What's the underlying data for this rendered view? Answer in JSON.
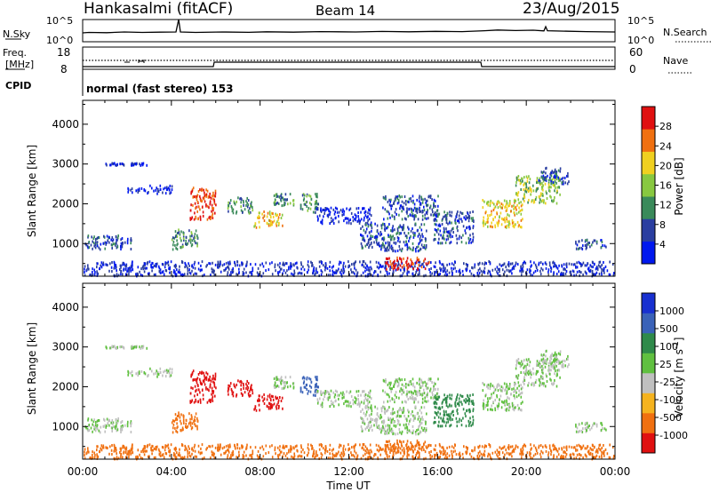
{
  "chart_data": {
    "type": "heatmap",
    "header": {
      "station": "Hankasalmi (fitACF)",
      "beam": "Beam 14",
      "date": "23/Aug/2015"
    },
    "noise_panel": {
      "left_label": "N.Sky",
      "left_ticks": [
        "10^5",
        "10^0"
      ],
      "right_label": "N.Search",
      "right_ticks": [
        "10^5",
        "10^0"
      ]
    },
    "freq_panel": {
      "left_label_1": "Freq.",
      "left_label_2": "[MHz]",
      "left_ticks": [
        "18",
        "8"
      ],
      "right_label": "Nave",
      "right_ticks": [
        "60",
        "0"
      ],
      "cpid_label": "CPID",
      "cpid_value": "normal (fast stereo) 153"
    },
    "x_axis": {
      "label": "Time UT",
      "ticks": [
        "00:00",
        "04:00",
        "08:00",
        "12:00",
        "16:00",
        "20:00",
        "00:00"
      ],
      "range_hours": [
        0,
        24
      ]
    },
    "power_panel": {
      "ylabel": "Slant Range [km]",
      "yticks": [
        1000,
        2000,
        3000,
        4000
      ],
      "yrange_km": [
        180,
        4600
      ],
      "colorbar_label": "Power [dB]",
      "colorbar_ticks": [
        "4",
        "8",
        "12",
        "16",
        "20",
        "24",
        "28"
      ],
      "colors": [
        "#0018ee",
        "#2a3ea0",
        "#3a8a5a",
        "#88c840",
        "#f0d020",
        "#f07010",
        "#e01010"
      ]
    },
    "velocity_panel": {
      "ylabel": "Slant Range [km]",
      "yticks": [
        1000,
        2000,
        3000,
        4000
      ],
      "yrange_km": [
        180,
        4600
      ],
      "colorbar_label": "Velocity [m s",
      "colorbar_label_sup": "-1",
      "colorbar_label_end": "]",
      "colorbar_ticks": [
        "1000",
        "500",
        "100",
        "25",
        "-25",
        "-100",
        "-500",
        "-1000"
      ],
      "colors": [
        "#1830d0",
        "#3a62b8",
        "#2f8a4a",
        "#60c040",
        "#c0c0c0",
        "#f5b31f",
        "#f07010",
        "#e01010"
      ]
    },
    "echo_regions": [
      {
        "t": [
          0.0,
          2.2
        ],
        "r": [
          850,
          1200
        ],
        "power": 8,
        "velocity": 25
      },
      {
        "t": [
          0.0,
          24.0
        ],
        "r": [
          180,
          550
        ],
        "power": 6,
        "velocity": -100
      },
      {
        "t": [
          1.0,
          3.0
        ],
        "r": [
          2960,
          3020
        ],
        "power": 4,
        "velocity": 25
      },
      {
        "t": [
          2.0,
          4.0
        ],
        "r": [
          2250,
          2450
        ],
        "power": 4,
        "velocity": 25
      },
      {
        "t": [
          4.0,
          5.2
        ],
        "r": [
          850,
          1350
        ],
        "power": 12,
        "velocity": -100
      },
      {
        "t": [
          4.8,
          6.0
        ],
        "r": [
          1600,
          2400
        ],
        "power": 26,
        "velocity": -500
      },
      {
        "t": [
          6.5,
          7.7
        ],
        "r": [
          1750,
          2150
        ],
        "power": 12,
        "velocity": -500
      },
      {
        "t": [
          7.7,
          9.0
        ],
        "r": [
          1400,
          1800
        ],
        "power": 20,
        "velocity": -500
      },
      {
        "t": [
          8.6,
          9.5
        ],
        "r": [
          1950,
          2250
        ],
        "power": 12,
        "velocity": 25
      },
      {
        "t": [
          9.8,
          10.6
        ],
        "r": [
          1750,
          2250
        ],
        "power": 12,
        "velocity": 500
      },
      {
        "t": [
          10.5,
          13.0
        ],
        "r": [
          1500,
          1900
        ],
        "power": 4,
        "velocity": 25
      },
      {
        "t": [
          12.5,
          15.5
        ],
        "r": [
          800,
          1500
        ],
        "power": 8,
        "velocity": 25
      },
      {
        "t": [
          13.5,
          16.0
        ],
        "r": [
          1600,
          2200
        ],
        "power": 8,
        "velocity": 25
      },
      {
        "t": [
          13.6,
          15.6
        ],
        "r": [
          350,
          650
        ],
        "power": 28,
        "velocity": -100
      },
      {
        "t": [
          15.8,
          17.6
        ],
        "r": [
          1000,
          1800
        ],
        "power": 8,
        "velocity": 100
      },
      {
        "t": [
          18.0,
          19.8
        ],
        "r": [
          1400,
          2100
        ],
        "power": 20,
        "velocity": 25
      },
      {
        "t": [
          19.5,
          21.5
        ],
        "r": [
          2000,
          2700
        ],
        "power": 16,
        "velocity": 25
      },
      {
        "t": [
          20.5,
          22.0
        ],
        "r": [
          2500,
          2900
        ],
        "power": 8,
        "velocity": 25
      },
      {
        "t": [
          22.2,
          23.6
        ],
        "r": [
          850,
          1100
        ],
        "power": 8,
        "velocity": 25
      }
    ]
  }
}
